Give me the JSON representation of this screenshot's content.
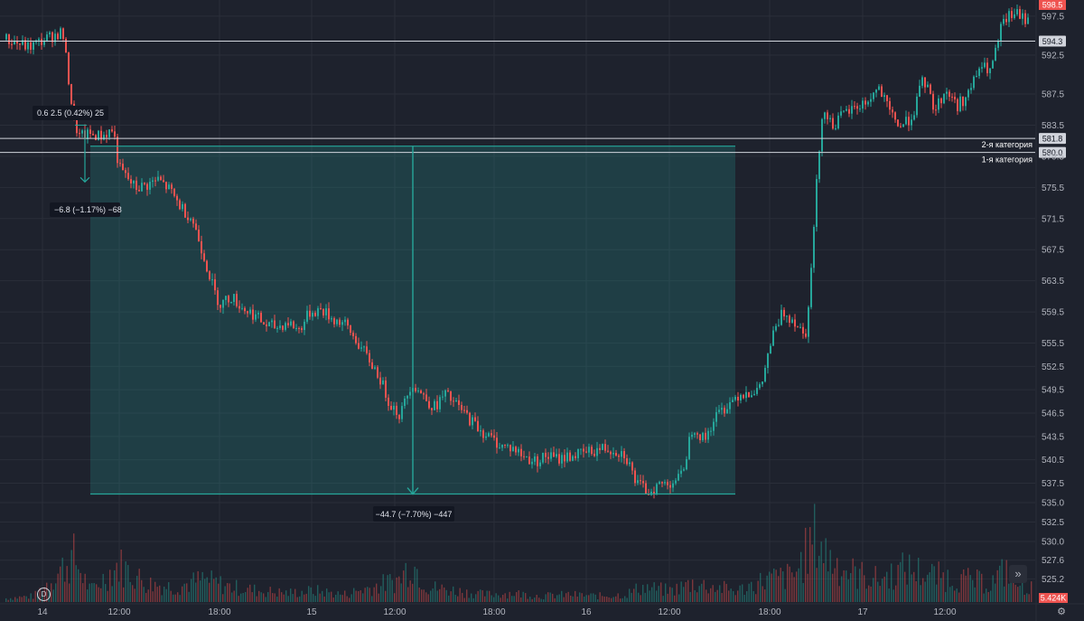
{
  "chart_data": {
    "type": "candlestick",
    "title": "",
    "interval_badge": "D",
    "y_axis": {
      "range": [
        523.5,
        599.0
      ],
      "tick_labels": [
        "597.5",
        "592.5",
        "587.5",
        "583.5",
        "579.5",
        "575.5",
        "571.5",
        "567.5",
        "563.5",
        "559.5",
        "555.5",
        "552.5",
        "549.5",
        "546.5",
        "543.5",
        "540.5",
        "537.5",
        "535.0",
        "532.5",
        "530.0",
        "527.6",
        "525.2"
      ],
      "tick_values": [
        597.5,
        592.5,
        587.5,
        583.5,
        579.5,
        575.5,
        571.5,
        567.5,
        563.5,
        559.5,
        555.5,
        552.5,
        549.5,
        546.5,
        543.5,
        540.5,
        537.5,
        535.0,
        532.5,
        530.0,
        527.6,
        525.2
      ],
      "top_price_label": "598.5",
      "bottom_volume_label": "5.424K"
    },
    "x_axis": {
      "tick_labels": [
        "14",
        "12:00",
        "18:00",
        "15",
        "12:00",
        "18:00",
        "16",
        "12:00",
        "18:00",
        "17",
        "12:00"
      ]
    },
    "horizontal_lines": [
      {
        "value": 594.3,
        "label": "594.3",
        "text": ""
      },
      {
        "value": 581.8,
        "label": "581.8",
        "text": "2-я категория"
      },
      {
        "value": 580.0,
        "label": "580.0",
        "text": "1-я категория"
      }
    ],
    "measures": [
      {
        "text": "0.6   2.5 (0.42%) 25",
        "from": 581.0,
        "to": 583.5
      },
      {
        "text": "−6.8 (−1.17%) −68",
        "from": 583.0,
        "to": 576.2
      },
      {
        "text": "−44.7 (−7.70%) −447",
        "from": 580.8,
        "to": 536.1
      }
    ],
    "price_path": [
      [
        0,
        594.5
      ],
      [
        4,
        593.5
      ],
      [
        8,
        594.9
      ],
      [
        10,
        595.5
      ],
      [
        12,
        584.0
      ],
      [
        13,
        582.0
      ],
      [
        15,
        582.3
      ],
      [
        17,
        582.1
      ],
      [
        19,
        583.0
      ],
      [
        20,
        578.0
      ],
      [
        22,
        576.2
      ],
      [
        23,
        575.4
      ],
      [
        25,
        575.8
      ],
      [
        27,
        576.5
      ],
      [
        29,
        575.2
      ],
      [
        31,
        573.0
      ],
      [
        33,
        571.5
      ],
      [
        35,
        567.0
      ],
      [
        37,
        562.0
      ],
      [
        38,
        560.5
      ],
      [
        40,
        561.5
      ],
      [
        42,
        560.0
      ],
      [
        44,
        559.2
      ],
      [
        46,
        557.8
      ],
      [
        48,
        557.5
      ],
      [
        50,
        558.2
      ],
      [
        52,
        557.2
      ],
      [
        54,
        559.5
      ],
      [
        56,
        559.8
      ],
      [
        58,
        558.6
      ],
      [
        60,
        558.0
      ],
      [
        62,
        556.0
      ],
      [
        64,
        553.8
      ],
      [
        66,
        551.6
      ],
      [
        68,
        548.0
      ],
      [
        70,
        546.2
      ],
      [
        72,
        550.5
      ],
      [
        74,
        548.8
      ],
      [
        76,
        547.2
      ],
      [
        78,
        548.9
      ],
      [
        80,
        547.5
      ],
      [
        82,
        546.0
      ],
      [
        84,
        544.5
      ],
      [
        86,
        543.3
      ],
      [
        88,
        542.3
      ],
      [
        90,
        542.0
      ],
      [
        92,
        540.9
      ],
      [
        94,
        540.3
      ],
      [
        96,
        541.0
      ],
      [
        98,
        540.6
      ],
      [
        100,
        541.0
      ],
      [
        102,
        541.2
      ],
      [
        104,
        541.6
      ],
      [
        106,
        542.0
      ],
      [
        108,
        541.8
      ],
      [
        110,
        541.2
      ],
      [
        112,
        537.4
      ],
      [
        114,
        536.4
      ],
      [
        116,
        537.3
      ],
      [
        118,
        537.6
      ],
      [
        120,
        538.4
      ],
      [
        122,
        545.0
      ],
      [
        124,
        543.0
      ],
      [
        126,
        546.0
      ],
      [
        128,
        547.5
      ],
      [
        130,
        548.9
      ],
      [
        132,
        549.3
      ],
      [
        134,
        549.5
      ],
      [
        136,
        556.0
      ],
      [
        138,
        559.5
      ],
      [
        140,
        558.5
      ],
      [
        142,
        556.5
      ],
      [
        143,
        564.5
      ],
      [
        144,
        576.0
      ],
      [
        145,
        585.5
      ],
      [
        147,
        583.5
      ],
      [
        149,
        585.0
      ],
      [
        151,
        585.8
      ],
      [
        153,
        586.5
      ],
      [
        155,
        588.3
      ],
      [
        157,
        585.0
      ],
      [
        159,
        583.3
      ],
      [
        161,
        584.7
      ],
      [
        163,
        589.5
      ],
      [
        165,
        585.5
      ],
      [
        167,
        588.0
      ],
      [
        169,
        586.0
      ],
      [
        171,
        587.5
      ],
      [
        173,
        591.0
      ],
      [
        175,
        590.5
      ],
      [
        177,
        596.5
      ],
      [
        179,
        598.0
      ],
      [
        181,
        597.0
      ],
      [
        183,
        598.6
      ]
    ],
    "volume_path": [
      [
        0,
        0.05
      ],
      [
        5,
        0.08
      ],
      [
        12,
        0.6
      ],
      [
        15,
        0.15
      ],
      [
        20,
        0.5
      ],
      [
        25,
        0.25
      ],
      [
        30,
        0.2
      ],
      [
        35,
        0.3
      ],
      [
        40,
        0.2
      ],
      [
        45,
        0.15
      ],
      [
        50,
        0.12
      ],
      [
        55,
        0.15
      ],
      [
        60,
        0.1
      ],
      [
        65,
        0.2
      ],
      [
        70,
        0.3
      ],
      [
        72,
        0.55
      ],
      [
        75,
        0.2
      ],
      [
        80,
        0.15
      ],
      [
        85,
        0.1
      ],
      [
        90,
        0.12
      ],
      [
        95,
        0.08
      ],
      [
        100,
        0.1
      ],
      [
        105,
        0.08
      ],
      [
        110,
        0.1
      ],
      [
        113,
        0.2
      ],
      [
        118,
        0.15
      ],
      [
        122,
        0.25
      ],
      [
        126,
        0.2
      ],
      [
        130,
        0.15
      ],
      [
        135,
        0.3
      ],
      [
        140,
        0.35
      ],
      [
        144,
        0.9
      ],
      [
        146,
        0.6
      ],
      [
        150,
        0.4
      ],
      [
        155,
        0.3
      ],
      [
        160,
        0.45
      ],
      [
        165,
        0.35
      ],
      [
        170,
        0.3
      ],
      [
        175,
        0.25
      ],
      [
        178,
        0.45
      ],
      [
        180,
        0.2
      ],
      [
        183,
        0.2
      ]
    ],
    "colors": {
      "background": "#1e222d",
      "grid": "#2a2e39",
      "up": "#26a69a",
      "down": "#ef5350",
      "measure_line": "#26a69a",
      "measure_fill": "rgba(38,166,154,0.22)",
      "level_line": "#d1d4dc"
    }
  },
  "ui": {
    "scroll_to_realtime_icon": "double-chevron-right-icon",
    "settings_icon": "gear-icon",
    "scroll_to_realtime_glyph": "»",
    "settings_glyph": "⚙"
  }
}
